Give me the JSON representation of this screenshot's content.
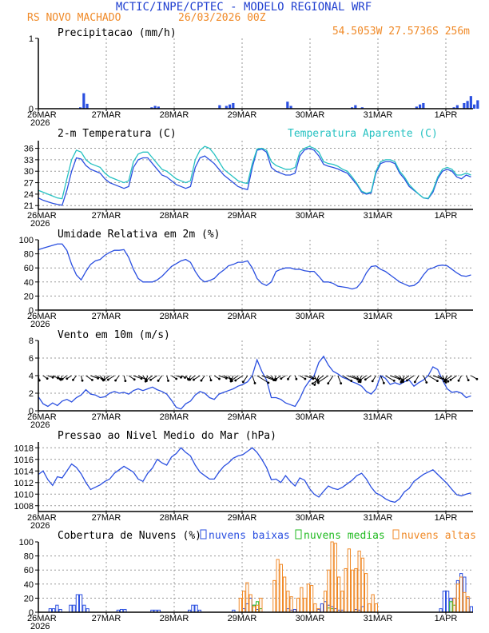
{
  "header": {
    "title": "MCTIC/INPE/CPTEC - MODELO REGIONAL WRF",
    "location": "RS NOVO MACHADO",
    "run": "26/03/2026 00Z",
    "coords": "54.5053W 27.5736S 256m"
  },
  "colors": {
    "title": "#1f3fd0",
    "orange": "#f08a28",
    "blue": "#2a4fe0",
    "cyan": "#27c2c2",
    "green": "#22bb22",
    "grid": "#9a9a9a",
    "black": "#000000"
  },
  "x_axis": {
    "days": [
      "26MAR",
      "27MAR",
      "28MAR",
      "29MAR",
      "30MAR",
      "31MAR",
      "1APR"
    ],
    "year": "2026"
  },
  "chart_data": [
    {
      "id": "precip",
      "type": "bar",
      "title": "Precipitacao (mm/h)",
      "ylim": [
        0,
        1
      ],
      "yticks": [
        "0",
        "1"
      ],
      "unit_hours": 3,
      "series": [
        {
          "name": "precip",
          "color": "blue",
          "points": [
            [
              12,
              0.02
            ],
            [
              13,
              0.22
            ],
            [
              14,
              0.07
            ],
            [
              33,
              0.02
            ],
            [
              34,
              0.04
            ],
            [
              35,
              0.03
            ],
            [
              53,
              0.05
            ],
            [
              55,
              0.04
            ],
            [
              56,
              0.06
            ],
            [
              57,
              0.08
            ],
            [
              73,
              0.1
            ],
            [
              74,
              0.04
            ],
            [
              92,
              0.02
            ],
            [
              93,
              0.05
            ],
            [
              95,
              0.02
            ],
            [
              111,
              0.03
            ],
            [
              112,
              0.06
            ],
            [
              113,
              0.08
            ],
            [
              122,
              0.02
            ],
            [
              123,
              0.05
            ],
            [
              125,
              0.08
            ],
            [
              126,
              0.11
            ],
            [
              127,
              0.18
            ],
            [
              128,
              0.06
            ],
            [
              129,
              0.12
            ]
          ]
        }
      ]
    },
    {
      "id": "temp",
      "type": "line",
      "title": "2-m Temperatura (C)",
      "legend": "Temperatura Aparente (C)",
      "ylim": [
        20,
        38
      ],
      "yticks": [
        "21",
        "24",
        "27",
        "30",
        "33",
        "36"
      ],
      "series": [
        {
          "name": "Temperatura (C)",
          "color": "blue",
          "values": [
            23.0,
            22.4,
            22.0,
            21.6,
            21.3,
            21.1,
            25.0,
            30.0,
            33.5,
            33.2,
            31.5,
            30.5,
            30.0,
            29.5,
            28.0,
            27.0,
            26.5,
            26.0,
            25.5,
            26.0,
            31.0,
            33.0,
            33.5,
            33.5,
            32.0,
            30.5,
            29.0,
            28.5,
            27.5,
            26.5,
            26.0,
            25.5,
            26.0,
            31.0,
            33.5,
            34.0,
            33.0,
            32.0,
            30.5,
            29.0,
            28.0,
            27.0,
            26.0,
            25.5,
            25.2,
            31.0,
            35.5,
            35.8,
            35.0,
            31.0,
            30.0,
            29.5,
            29.0,
            29.0,
            29.5,
            34.0,
            35.6,
            36.0,
            35.5,
            34.0,
            31.8,
            31.3,
            31.0,
            30.6,
            30.0,
            29.5,
            28.0,
            26.5,
            24.5,
            24.0,
            24.3,
            29.5,
            32.0,
            32.5,
            32.5,
            32.0,
            29.5,
            28.0,
            26.0,
            25.0,
            24.0,
            23.0,
            22.8,
            24.5,
            28.0,
            30.0,
            30.5,
            30.0,
            28.5,
            28.0,
            29.0,
            28.5
          ]
        },
        {
          "name": "Temperatura Aparente (C)",
          "color": "cyan",
          "values": [
            25.0,
            24.5,
            24.0,
            23.5,
            23.0,
            22.8,
            28.0,
            33.0,
            35.5,
            35.0,
            33.0,
            32.0,
            31.5,
            31.0,
            29.5,
            28.5,
            28.0,
            27.5,
            27.0,
            27.5,
            32.5,
            34.5,
            35.0,
            35.0,
            33.5,
            32.0,
            30.5,
            30.0,
            29.0,
            28.0,
            27.5,
            27.0,
            27.5,
            33.0,
            35.5,
            36.5,
            36.0,
            34.5,
            32.5,
            30.5,
            29.5,
            28.5,
            27.5,
            27.0,
            26.8,
            32.0,
            35.8,
            36.0,
            35.5,
            32.5,
            31.5,
            31.0,
            30.5,
            30.5,
            31.0,
            35.0,
            36.0,
            36.5,
            36.0,
            35.0,
            32.5,
            32.0,
            31.8,
            31.3,
            30.5,
            30.0,
            28.5,
            26.8,
            24.8,
            24.2,
            24.6,
            30.0,
            32.5,
            33.0,
            33.0,
            32.5,
            30.0,
            28.5,
            26.5,
            25.2,
            24.0,
            23.0,
            22.9,
            25.0,
            28.5,
            30.5,
            31.0,
            30.5,
            29.0,
            29.0,
            29.5,
            29.0
          ]
        }
      ]
    },
    {
      "id": "rh",
      "type": "line",
      "title": "Umidade Relativa em 2m (%)",
      "ylim": [
        0,
        100
      ],
      "yticks": [
        "0",
        "20",
        "40",
        "60",
        "80",
        "100"
      ],
      "series": [
        {
          "name": "Umidade Relativa",
          "color": "blue",
          "values": [
            86,
            88,
            90,
            92,
            94,
            94,
            85,
            65,
            50,
            43,
            55,
            65,
            70,
            72,
            78,
            82,
            85,
            85,
            86,
            75,
            58,
            45,
            40,
            40,
            40,
            43,
            48,
            55,
            62,
            66,
            70,
            72,
            68,
            55,
            45,
            40,
            42,
            45,
            52,
            57,
            63,
            65,
            68,
            68,
            70,
            60,
            45,
            38,
            35,
            40,
            55,
            58,
            60,
            60,
            58,
            58,
            56,
            55,
            55,
            48,
            40,
            40,
            38,
            34,
            33,
            32,
            30,
            32,
            40,
            53,
            62,
            63,
            58,
            55,
            50,
            45,
            40,
            37,
            34,
            35,
            40,
            50,
            58,
            60,
            63,
            64,
            63,
            58,
            53,
            49,
            48,
            50
          ]
        }
      ]
    },
    {
      "id": "wind",
      "type": "line",
      "title": "Vento em 10m (m/s)",
      "ylim": [
        0,
        8
      ],
      "yticks": [
        "0",
        "2",
        "4",
        "6",
        "8"
      ],
      "series": [
        {
          "name": "Vento",
          "color": "blue",
          "values": [
            1.6,
            0.8,
            0.5,
            0.9,
            0.6,
            1.1,
            1.3,
            1.0,
            1.5,
            1.8,
            2.4,
            1.9,
            1.8,
            1.5,
            1.6,
            2.0,
            2.2,
            2.0,
            2.1,
            1.9,
            2.3,
            2.5,
            2.3,
            2.5,
            2.7,
            2.4,
            2.2,
            1.9,
            1.2,
            0.4,
            0.2,
            0.8,
            1.1,
            1.8,
            2.2,
            2.0,
            1.5,
            1.3,
            1.9,
            2.1,
            2.3,
            2.5,
            2.8,
            3.0,
            3.3,
            4.0,
            5.8,
            4.5,
            3.5,
            1.5,
            1.5,
            1.3,
            0.9,
            0.7,
            0.5,
            1.4,
            2.6,
            3.4,
            4.0,
            5.5,
            6.2,
            5.2,
            4.5,
            4.2,
            3.8,
            3.6,
            3.3,
            3.1,
            2.8,
            2.2,
            1.9,
            2.5,
            4.0,
            3.7,
            3.0,
            3.2,
            3.0,
            3.3,
            3.5,
            2.8,
            3.2,
            3.5,
            4.0,
            5.0,
            4.7,
            3.5,
            2.5,
            2.1,
            2.2,
            2.0,
            1.5,
            1.7
          ]
        }
      ],
      "arrow_baseline": 4
    },
    {
      "id": "pres",
      "type": "line",
      "title": "Pressao ao Nivel Medio do Mar (hPa)",
      "ylim": [
        1007,
        1019
      ],
      "yticks": [
        "1008",
        "1010",
        "1012",
        "1014",
        "1016",
        "1018"
      ],
      "series": [
        {
          "name": "Pressao",
          "color": "blue",
          "values": [
            1013.4,
            1014.0,
            1012.5,
            1011.5,
            1013.0,
            1012.8,
            1014.0,
            1015.2,
            1014.6,
            1013.5,
            1012.0,
            1010.8,
            1011.2,
            1011.6,
            1012.2,
            1012.6,
            1013.6,
            1014.2,
            1014.8,
            1014.3,
            1013.8,
            1012.6,
            1012.2,
            1013.6,
            1014.5,
            1016.0,
            1015.4,
            1015.0,
            1016.4,
            1017.0,
            1018.0,
            1017.2,
            1016.6,
            1015.0,
            1013.8,
            1013.2,
            1012.6,
            1012.6,
            1013.8,
            1014.8,
            1015.4,
            1016.2,
            1016.6,
            1016.8,
            1017.4,
            1018.0,
            1017.2,
            1016.0,
            1014.6,
            1012.5,
            1012.6,
            1012.0,
            1013.2,
            1012.2,
            1011.4,
            1012.8,
            1012.4,
            1011.0,
            1010.0,
            1009.5,
            1010.5,
            1011.4,
            1011.0,
            1010.8,
            1011.2,
            1011.8,
            1012.4,
            1013.2,
            1013.6,
            1012.6,
            1011.2,
            1010.2,
            1009.8,
            1009.2,
            1008.8,
            1008.6,
            1009.2,
            1010.4,
            1011.0,
            1012.2,
            1012.8,
            1013.4,
            1013.8,
            1014.2,
            1013.4,
            1012.6,
            1011.8,
            1010.8,
            1009.9,
            1009.7,
            1010.0,
            1010.2
          ]
        }
      ]
    },
    {
      "id": "cloud",
      "type": "bar",
      "title": "Cobertura de Nuvens (%)",
      "legend": [
        "nuvens baixas",
        "nuvens medias",
        "nuvens altas"
      ],
      "ylim": [
        0,
        100
      ],
      "yticks": [
        "0",
        "20",
        "40",
        "60",
        "80",
        "100"
      ],
      "series": [
        {
          "name": "nuvens baixas",
          "color": "blue",
          "points": [
            [
              3,
              5
            ],
            [
              4,
              5
            ],
            [
              5,
              10
            ],
            [
              6,
              4
            ],
            [
              9,
              10
            ],
            [
              10,
              10
            ],
            [
              11,
              25
            ],
            [
              12,
              25
            ],
            [
              13,
              10
            ],
            [
              14,
              5
            ],
            [
              23,
              3
            ],
            [
              24,
              4
            ],
            [
              25,
              4
            ],
            [
              33,
              3
            ],
            [
              34,
              3
            ],
            [
              35,
              3
            ],
            [
              44,
              3
            ],
            [
              45,
              10
            ],
            [
              46,
              10
            ],
            [
              47,
              3
            ],
            [
              57,
              3
            ],
            [
              60,
              5
            ],
            [
              61,
              12
            ],
            [
              62,
              20
            ],
            [
              63,
              10
            ],
            [
              64,
              4
            ],
            [
              73,
              5
            ],
            [
              74,
              3
            ],
            [
              75,
              4
            ],
            [
              82,
              4
            ],
            [
              83,
              12
            ],
            [
              84,
              15
            ],
            [
              85,
              10
            ],
            [
              86,
              8
            ],
            [
              87,
              5
            ],
            [
              88,
              3
            ],
            [
              89,
              3
            ],
            [
              93,
              4
            ],
            [
              94,
              3
            ],
            [
              95,
              8
            ],
            [
              118,
              5
            ],
            [
              119,
              30
            ],
            [
              120,
              30
            ],
            [
              121,
              20
            ],
            [
              122,
              20
            ],
            [
              123,
              45
            ],
            [
              124,
              55
            ],
            [
              125,
              50
            ],
            [
              126,
              20
            ],
            [
              127,
              8
            ]
          ]
        },
        {
          "name": "nuvens medias",
          "color": "green",
          "points": [
            [
              63,
              10
            ],
            [
              64,
              15
            ],
            [
              65,
              5
            ],
            [
              85,
              6
            ],
            [
              86,
              5
            ],
            [
              121,
              15
            ],
            [
              122,
              10
            ]
          ]
        },
        {
          "name": "nuvens altas",
          "color": "orange",
          "points": [
            [
              59,
              20
            ],
            [
              60,
              30
            ],
            [
              61,
              42
            ],
            [
              62,
              25
            ],
            [
              63,
              8
            ],
            [
              64,
              10
            ],
            [
              65,
              20
            ],
            [
              69,
              45
            ],
            [
              70,
              75
            ],
            [
              71,
              68
            ],
            [
              72,
              50
            ],
            [
              73,
              30
            ],
            [
              74,
              22
            ],
            [
              76,
              20
            ],
            [
              77,
              35
            ],
            [
              78,
              20
            ],
            [
              79,
              40
            ],
            [
              80,
              38
            ],
            [
              81,
              12
            ],
            [
              82,
              5
            ],
            [
              84,
              30
            ],
            [
              85,
              60
            ],
            [
              86,
              100
            ],
            [
              87,
              98
            ],
            [
              88,
              50
            ],
            [
              89,
              30
            ],
            [
              90,
              62
            ],
            [
              91,
              90
            ],
            [
              92,
              60
            ],
            [
              93,
              62
            ],
            [
              94,
              87
            ],
            [
              95,
              77
            ],
            [
              96,
              55
            ],
            [
              97,
              12
            ],
            [
              98,
              25
            ],
            [
              99,
              12
            ],
            [
              122,
              20
            ],
            [
              123,
              40
            ],
            [
              124,
              50
            ],
            [
              125,
              28
            ],
            [
              126,
              22
            ]
          ]
        }
      ]
    }
  ]
}
